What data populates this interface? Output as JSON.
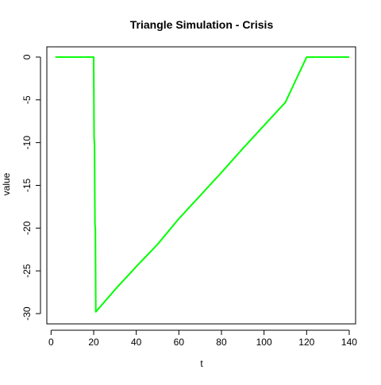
{
  "chart_data": {
    "type": "line",
    "title": "Triangle Simulation - Crisis",
    "xlabel": "t",
    "ylabel": "value",
    "xlim": [
      -2,
      143
    ],
    "ylim": [
      -31.2,
      1.2
    ],
    "x_ticks": [
      0,
      20,
      40,
      60,
      80,
      100,
      120,
      140
    ],
    "y_ticks": [
      0,
      -5,
      -10,
      -15,
      -20,
      -25,
      -30
    ],
    "grid": false,
    "legend": "none",
    "series": [
      {
        "color": "#00ff00",
        "points": [
          [
            2,
            0
          ],
          [
            3,
            0
          ],
          [
            4,
            0
          ],
          [
            5,
            0
          ],
          [
            6,
            0
          ],
          [
            7,
            0
          ],
          [
            8,
            0
          ],
          [
            9,
            0
          ],
          [
            10,
            0
          ],
          [
            11,
            0
          ],
          [
            12,
            0
          ],
          [
            13,
            0
          ],
          [
            14,
            0
          ],
          [
            15,
            0
          ],
          [
            16,
            0
          ],
          [
            17,
            0
          ],
          [
            18,
            0
          ],
          [
            19,
            0
          ],
          [
            20,
            0
          ],
          [
            20.2,
            -9.5
          ],
          [
            20.4,
            -10.2
          ],
          [
            20.6,
            -19.5
          ],
          [
            20.8,
            -20.2
          ],
          [
            21,
            -29.8
          ],
          [
            22,
            -29.5
          ],
          [
            30,
            -27.2
          ],
          [
            40,
            -24.5
          ],
          [
            50,
            -21.9
          ],
          [
            60,
            -18.9
          ],
          [
            70,
            -16.2
          ],
          [
            80,
            -13.5
          ],
          [
            90,
            -10.7
          ],
          [
            100,
            -8.0
          ],
          [
            110,
            -5.3
          ],
          [
            120,
            0
          ],
          [
            125,
            0
          ],
          [
            130,
            0
          ],
          [
            135,
            0
          ],
          [
            140,
            0
          ]
        ]
      }
    ]
  }
}
